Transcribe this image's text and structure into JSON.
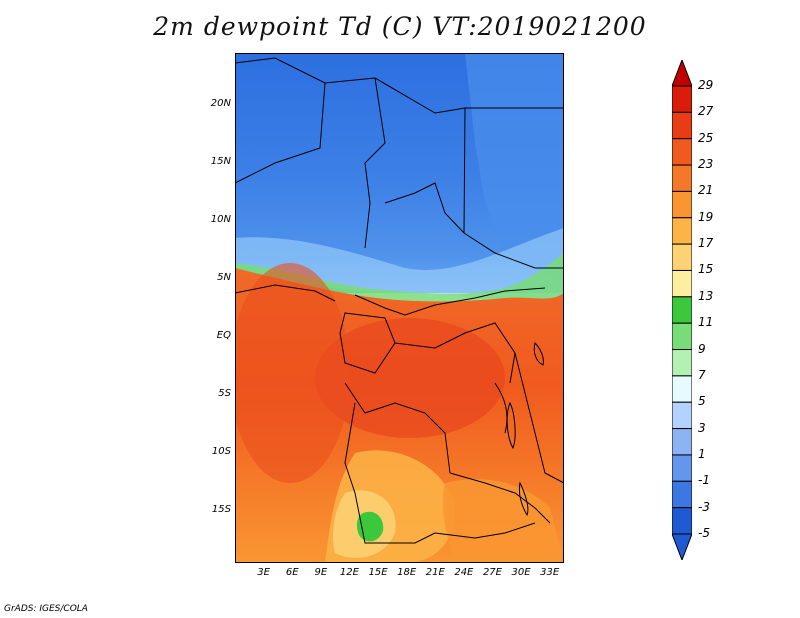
{
  "title": "2m dewpoint Td (C) VT:2019021200",
  "credit": "GrADS: IGES/COLA",
  "map": {
    "lat_labels": [
      "20N",
      "15N",
      "10N",
      "5N",
      "EQ",
      "5S",
      "10S",
      "15S"
    ],
    "lon_labels": [
      "3E",
      "6E",
      "9E",
      "12E",
      "15E",
      "18E",
      "21E",
      "24E",
      "27E",
      "30E",
      "33E"
    ],
    "lat_range": [
      -19.5,
      24.5
    ],
    "lon_range": [
      0,
      34.5
    ],
    "description_regions": {
      "north_colors": [
        "#2a6fdc",
        "#3f86e8",
        "#5aa0f0"
      ],
      "south_colors": [
        "#e8461e",
        "#f06a28",
        "#f59a2d",
        "#ffc36a"
      ]
    }
  },
  "colorbar": {
    "levels": [
      "29",
      "27",
      "25",
      "23",
      "21",
      "19",
      "17",
      "15",
      "13",
      "11",
      "9",
      "7",
      "5",
      "3",
      "1",
      "-1",
      "-3",
      "-5"
    ],
    "colors": [
      "#c00000",
      "#d81e0a",
      "#e83c14",
      "#f05a1e",
      "#f57828",
      "#f99632",
      "#fbb446",
      "#fcd274",
      "#fcf0a0",
      "#3cc83c",
      "#78dc78",
      "#b4f0b4",
      "#e6faff",
      "#b4d2ff",
      "#8cb4f5",
      "#6496eb",
      "#3c78e1",
      "#1e5ad2",
      "#1e5ad2"
    ]
  }
}
